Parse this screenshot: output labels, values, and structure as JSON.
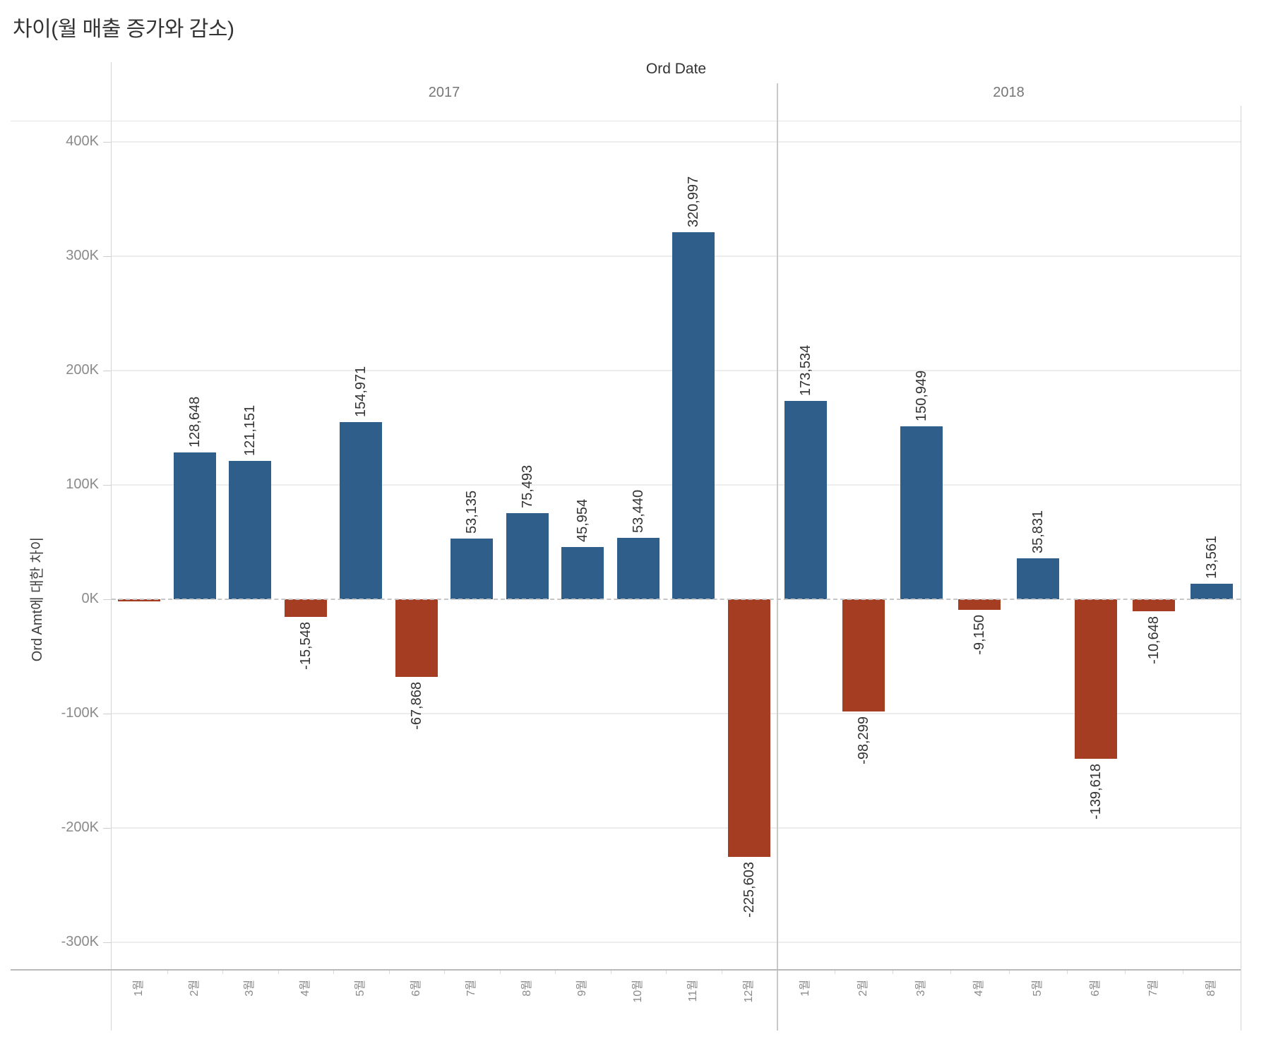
{
  "title": "차이(월 매출 증가와 감소)",
  "header": {
    "field_label": "Ord Date"
  },
  "y_axis": {
    "title": "Ord Amt에 대한 차이",
    "ticks": [
      {
        "label": "400K",
        "value": 400000
      },
      {
        "label": "300K",
        "value": 300000
      },
      {
        "label": "200K",
        "value": 200000
      },
      {
        "label": "100K",
        "value": 100000
      },
      {
        "label": "0K",
        "value": 0
      },
      {
        "label": "-100K",
        "value": -100000
      },
      {
        "label": "-200K",
        "value": -200000
      },
      {
        "label": "-300K",
        "value": -300000
      }
    ]
  },
  "colors": {
    "positive_bar": "#2f5e8a",
    "negative_bar": "#a43d22",
    "gridline": "#ededed",
    "zero_line": "#c6c6c6",
    "axis_line": "#b9b9b9",
    "tick_text": "#8a8a8a",
    "label_text": "#333333"
  },
  "chart_data": {
    "type": "bar",
    "title": "차이(월 매출 증가와 감소)",
    "xlabel": "Ord Date",
    "ylabel": "Ord Amt에 대한 차이",
    "ylim": [
      -325000,
      418000
    ],
    "grid": true,
    "legend": "none",
    "zero_line": "dashed",
    "label_rotation": -90,
    "panels": [
      {
        "year": "2017",
        "categories": [
          "1월",
          "2월",
          "3월",
          "4월",
          "5월",
          "6월",
          "7월",
          "8월",
          "9월",
          "10월",
          "11월",
          "12월"
        ],
        "values": [
          -1500,
          128648,
          121151,
          -15548,
          154971,
          -67868,
          53135,
          75493,
          45954,
          53440,
          320997,
          -225603
        ],
        "labels": [
          "",
          "128,648",
          "121,151",
          "-15,548",
          "154,971",
          "-67,868",
          "53,135",
          "75,493",
          "45,954",
          "53,440",
          "320,997",
          "-225,603"
        ]
      },
      {
        "year": "2018",
        "categories": [
          "1월",
          "2월",
          "3월",
          "4월",
          "5월",
          "6월",
          "7월",
          "8월"
        ],
        "values": [
          173534,
          -98299,
          150949,
          -9150,
          35831,
          -139618,
          -10648,
          13561
        ],
        "labels": [
          "173,534",
          "-98,299",
          "150,949",
          "-9,150",
          "35,831",
          "-139,618",
          "-10,648",
          "13,561"
        ]
      }
    ]
  }
}
